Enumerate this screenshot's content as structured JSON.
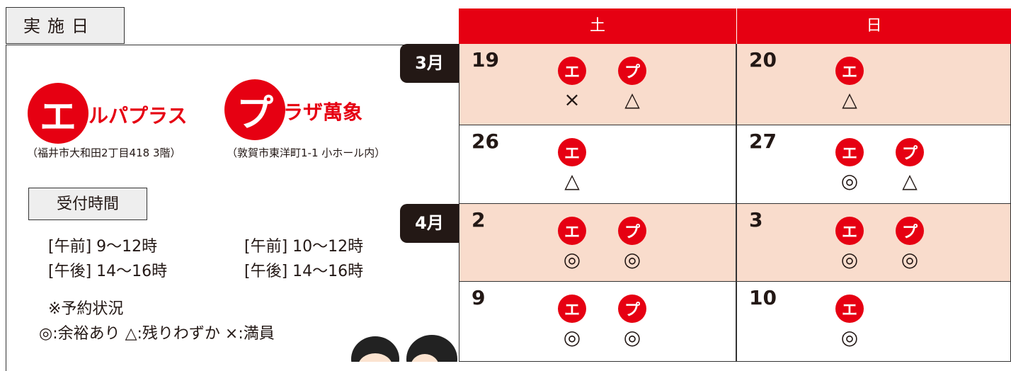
{
  "left": {
    "header": "実施日",
    "venues": [
      {
        "icon": "エ",
        "name": "ルパプラス",
        "address": "（福井市大和田2丁目418 3階）"
      },
      {
        "icon": "プ",
        "name": "ラザ萬象",
        "address": "（敦賀市東洋町1-1 小ホール内）"
      }
    ],
    "reception": {
      "label": "受付時間",
      "times": [
        [
          "[午前] 9〜12時",
          "[午後] 14〜16時"
        ],
        [
          "[午前] 10〜12時",
          "[午後] 14〜16時"
        ]
      ]
    },
    "note": {
      "title": "※予約状況",
      "legend": "◎:余裕あり △:残りわずか ×:満員"
    }
  },
  "calendar": {
    "headers": [
      "土",
      "日"
    ],
    "rows": [
      {
        "month": "3月",
        "cells": [
          {
            "date": "19",
            "items": [
              {
                "icon": "エ",
                "status": "×"
              },
              {
                "icon": "プ",
                "status": "△"
              }
            ]
          },
          {
            "date": "20",
            "items": [
              {
                "icon": "エ",
                "status": "△"
              }
            ]
          }
        ]
      },
      {
        "month": null,
        "cells": [
          {
            "date": "26",
            "items": [
              {
                "icon": "エ",
                "status": "△"
              }
            ]
          },
          {
            "date": "27",
            "items": [
              {
                "icon": "エ",
                "status": "◎"
              },
              {
                "icon": "プ",
                "status": "△"
              }
            ]
          }
        ]
      },
      {
        "month": "4月",
        "cells": [
          {
            "date": "2",
            "items": [
              {
                "icon": "エ",
                "status": "◎"
              },
              {
                "icon": "プ",
                "status": "◎"
              }
            ]
          },
          {
            "date": "3",
            "items": [
              {
                "icon": "エ",
                "status": "◎"
              },
              {
                "icon": "プ",
                "status": "◎"
              }
            ]
          }
        ]
      },
      {
        "month": null,
        "cells": [
          {
            "date": "9",
            "items": [
              {
                "icon": "エ",
                "status": "◎"
              },
              {
                "icon": "プ",
                "status": "◎"
              }
            ]
          },
          {
            "date": "10",
            "items": [
              {
                "icon": "エ",
                "status": "◎"
              }
            ]
          }
        ]
      }
    ]
  }
}
